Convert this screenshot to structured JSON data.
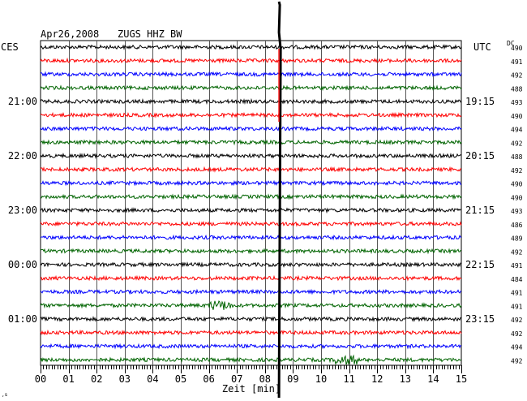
{
  "header": {
    "date": "Apr26,2008",
    "station": "ZUGS HHZ BW",
    "left_zone": "CES",
    "right_zone": "UTC",
    "dc_label": "DC"
  },
  "chart_data": {
    "type": "line",
    "title": "Apr26,2008   ZUGS HHZ BW",
    "xlabel": "Zeit [min]",
    "xlim": [
      0,
      15
    ],
    "x_ticks": [
      "00",
      "01",
      "02",
      "03",
      "04",
      "05",
      "06",
      "07",
      "08",
      "09",
      "10",
      "11",
      "12",
      "13",
      "14",
      "15"
    ],
    "grid": true,
    "trace_colors": [
      "#000000",
      "#ff0000",
      "#0000ff",
      "#006400"
    ],
    "left_time_labels": [
      {
        "row": 4,
        "label": "21:00"
      },
      {
        "row": 8,
        "label": "22:00"
      },
      {
        "row": 12,
        "label": "23:00"
      },
      {
        "row": 16,
        "label": "00:00"
      },
      {
        "row": 20,
        "label": "01:00"
      }
    ],
    "right_time_labels": [
      {
        "row": 4,
        "label": "19:15"
      },
      {
        "row": 8,
        "label": "20:15"
      },
      {
        "row": 12,
        "label": "21:15"
      },
      {
        "row": 16,
        "label": "22:15"
      },
      {
        "row": 20,
        "label": "23:15"
      }
    ],
    "dc_offsets": [
      490,
      491,
      492,
      488,
      493,
      490,
      494,
      492,
      488,
      492,
      490,
      490,
      493,
      486,
      489,
      492,
      491,
      484,
      491,
      491,
      492,
      492,
      494,
      492
    ],
    "events": [
      {
        "type": "large_spike",
        "minute": 8.5,
        "rows": "all"
      },
      {
        "type": "burst",
        "row": 19,
        "minute_start": 6.0,
        "minute_end": 6.8
      },
      {
        "type": "burst",
        "row": 23,
        "minute_start": 10.5,
        "minute_end": 11.3
      }
    ]
  }
}
